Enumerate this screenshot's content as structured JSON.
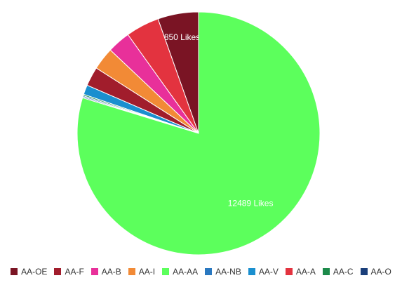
{
  "chart_data": {
    "type": "pie",
    "legend_position": "bottom",
    "slices": [
      {
        "name": "AA-OE",
        "value": 850,
        "color": "#7a1424",
        "label": "850 Likes"
      },
      {
        "name": "AA-A",
        "value": 700,
        "color": "#e3333f",
        "label": ""
      },
      {
        "name": "AA-B",
        "value": 480,
        "color": "#e8309a",
        "label": ""
      },
      {
        "name": "AA-I",
        "value": 470,
        "color": "#f28a36",
        "label": ""
      },
      {
        "name": "AA-F",
        "value": 400,
        "color": "#a11d2c",
        "label": ""
      },
      {
        "name": "AA-V",
        "value": 200,
        "color": "#1a8fcf",
        "label": ""
      },
      {
        "name": "AA-C",
        "value": 30,
        "color": "#1c8a4a",
        "label": ""
      },
      {
        "name": "AA-NB",
        "value": 25,
        "color": "#2a78c0",
        "label": ""
      },
      {
        "name": "AA-O",
        "value": 20,
        "color": "#1a3f7a",
        "label": ""
      },
      {
        "name": "AA-AA",
        "value": 12489,
        "color": "#5cff5c",
        "label": "12489 Likes"
      }
    ],
    "legend": [
      {
        "name": "AA-OE",
        "color": "#7a1424"
      },
      {
        "name": "AA-F",
        "color": "#a11d2c"
      },
      {
        "name": "AA-B",
        "color": "#e8309a"
      },
      {
        "name": "AA-I",
        "color": "#f28a36"
      },
      {
        "name": "AA-AA",
        "color": "#5cff5c"
      },
      {
        "name": "AA-NB",
        "color": "#2a78c0"
      },
      {
        "name": "AA-V",
        "color": "#1a8fcf"
      },
      {
        "name": "AA-A",
        "color": "#e3333f"
      },
      {
        "name": "AA-C",
        "color": "#1c8a4a"
      },
      {
        "name": "AA-O",
        "color": "#1a3f7a"
      }
    ]
  }
}
